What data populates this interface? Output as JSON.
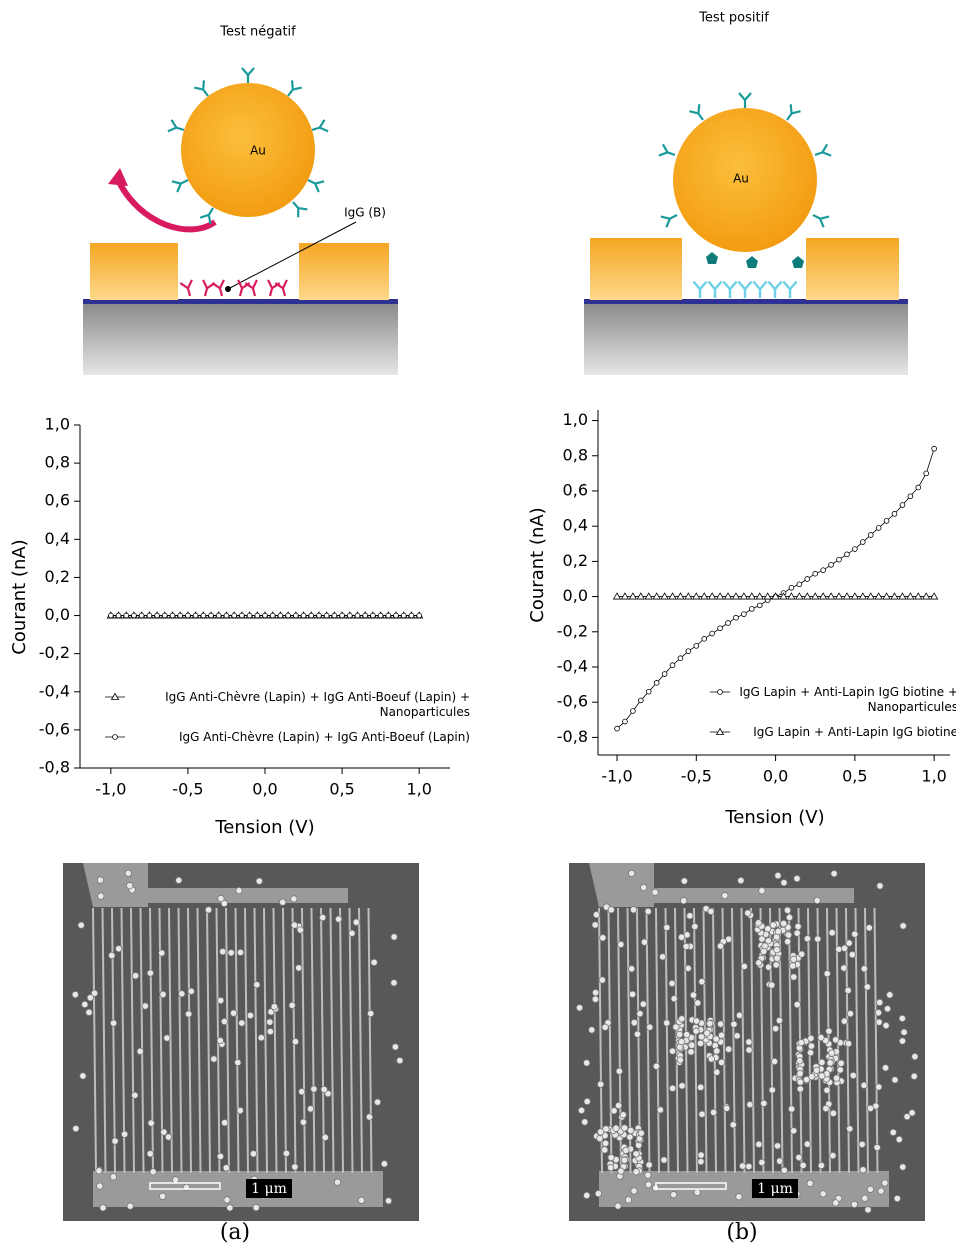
{
  "panels": [
    {
      "title": "Test négatif",
      "particle_label": "Au",
      "annotation": "IgG (B)",
      "scale_bar": "1 μm",
      "caption": "(a)"
    },
    {
      "title": "Test positif",
      "particle_label": "Au",
      "scale_bar": "1 μm",
      "caption": "(b)"
    }
  ],
  "chart_data": [
    {
      "type": "line",
      "x_label": "Tension (V)",
      "y_label": "Courant (nA)",
      "legend": "lower center",
      "xlim": [
        -1.2,
        1.2
      ],
      "ylim": [
        -0.8,
        1.0
      ],
      "xticks": [
        {
          "value": -1,
          "label": "-1,0"
        },
        {
          "value": -0.5,
          "label": "-0,5"
        },
        {
          "value": 0,
          "label": "0,0"
        },
        {
          "value": 0.5,
          "label": "0,5"
        },
        {
          "value": 1,
          "label": "1,0"
        }
      ],
      "yticks": [
        {
          "value": -0.8,
          "label": "-0,8"
        },
        {
          "value": -0.6,
          "label": "-0,6"
        },
        {
          "value": -0.4,
          "label": "-0,4"
        },
        {
          "value": -0.2,
          "label": "-0,2"
        },
        {
          "value": 0,
          "label": "0,0"
        },
        {
          "value": 0.2,
          "label": "0,2"
        },
        {
          "value": 0.4,
          "label": "0,4"
        },
        {
          "value": 0.6,
          "label": "0,6"
        },
        {
          "value": 0.8,
          "label": "0,8"
        },
        {
          "value": 1,
          "label": "1,0"
        }
      ],
      "x": [
        -1,
        -0.95,
        -0.9,
        -0.85,
        -0.8,
        -0.75,
        -0.7,
        -0.65,
        -0.6,
        -0.55,
        -0.5,
        -0.45,
        -0.4,
        -0.35,
        -0.3,
        -0.25,
        -0.2,
        -0.15,
        -0.1,
        -0.05,
        0,
        0.05,
        0.1,
        0.15,
        0.2,
        0.25,
        0.3,
        0.35,
        0.4,
        0.45,
        0.5,
        0.55,
        0.6,
        0.65,
        0.7,
        0.75,
        0.8,
        0.85,
        0.9,
        0.95,
        1
      ],
      "series": [
        {
          "name": "IgG Anti-Chèvre (Lapin)  + IgG Anti-Boeuf (Lapin) + Nanoparticules",
          "marker": "triangle",
          "color": "#000000",
          "values": [
            0,
            0,
            0,
            0,
            0,
            0,
            0,
            0,
            0,
            0,
            0,
            0,
            0,
            0,
            0,
            0,
            0,
            0,
            0,
            0,
            0,
            0,
            0,
            0,
            0,
            0,
            0,
            0,
            0,
            0,
            0,
            0,
            0,
            0,
            0,
            0,
            0,
            0,
            0,
            0,
            0
          ]
        },
        {
          "name": "IgG Anti-Chèvre (Lapin)  + IgG Anti-Boeuf (Lapin)",
          "marker": "circle",
          "color": "#000000",
          "values": [
            0,
            0,
            0,
            0,
            0,
            0,
            0,
            0,
            0,
            0,
            0,
            0,
            0,
            0,
            0,
            0,
            0,
            0,
            0,
            0,
            0,
            0,
            0,
            0,
            0,
            0,
            0,
            0,
            0,
            0,
            0,
            0,
            0,
            0,
            0,
            0,
            0,
            0,
            0,
            0,
            0
          ]
        }
      ]
    },
    {
      "type": "line",
      "x_label": "Tension (V)",
      "y_label": "Courant (nA)",
      "legend": "lower right",
      "xlim": [
        -1.12,
        1.1
      ],
      "ylim": [
        -0.9,
        1.06
      ],
      "xticks": [
        {
          "value": -1,
          "label": "-1,0"
        },
        {
          "value": -0.5,
          "label": "-0,5"
        },
        {
          "value": 0,
          "label": "0,0"
        },
        {
          "value": 0.5,
          "label": "0,5"
        },
        {
          "value": 1,
          "label": "1,0"
        }
      ],
      "yticks": [
        {
          "value": -0.8,
          "label": "-0,8"
        },
        {
          "value": -0.6,
          "label": "-0,6"
        },
        {
          "value": -0.4,
          "label": "-0,4"
        },
        {
          "value": -0.2,
          "label": "-0,2"
        },
        {
          "value": 0,
          "label": "0,0"
        },
        {
          "value": 0.2,
          "label": "0,2"
        },
        {
          "value": 0.4,
          "label": "0,4"
        },
        {
          "value": 0.6,
          "label": "0,6"
        },
        {
          "value": 0.8,
          "label": "0,8"
        },
        {
          "value": 1,
          "label": "1,0"
        }
      ],
      "x": [
        -1,
        -0.95,
        -0.9,
        -0.85,
        -0.8,
        -0.75,
        -0.7,
        -0.65,
        -0.6,
        -0.55,
        -0.5,
        -0.45,
        -0.4,
        -0.35,
        -0.3,
        -0.25,
        -0.2,
        -0.15,
        -0.1,
        -0.05,
        0,
        0.05,
        0.1,
        0.15,
        0.2,
        0.25,
        0.3,
        0.35,
        0.4,
        0.45,
        0.5,
        0.55,
        0.6,
        0.65,
        0.7,
        0.75,
        0.8,
        0.85,
        0.9,
        0.95,
        1
      ],
      "series": [
        {
          "name": "IgG Lapin + Anti-Lapin IgG biotine + Nanoparticules",
          "marker": "circle",
          "color": "#000000",
          "values": [
            -0.75,
            -0.71,
            -0.65,
            -0.59,
            -0.54,
            -0.49,
            -0.44,
            -0.39,
            -0.35,
            -0.31,
            -0.28,
            -0.24,
            -0.21,
            -0.18,
            -0.15,
            -0.12,
            -0.1,
            -0.07,
            -0.05,
            -0.02,
            0,
            0.02,
            0.05,
            0.07,
            0.1,
            0.13,
            0.15,
            0.18,
            0.21,
            0.24,
            0.27,
            0.31,
            0.35,
            0.39,
            0.43,
            0.47,
            0.52,
            0.57,
            0.62,
            0.7,
            0.84
          ]
        },
        {
          "name": "IgG Lapin + Anti-Lapin IgG biotine",
          "marker": "triangle",
          "color": "#000000",
          "values": [
            0,
            0,
            0,
            0,
            0,
            0,
            0,
            0,
            0,
            0,
            0,
            0,
            0,
            0,
            0,
            0,
            0,
            0,
            0,
            0,
            0,
            0,
            0,
            0,
            0,
            0,
            0,
            0,
            0,
            0,
            0,
            0,
            0,
            0,
            0,
            0,
            0,
            0,
            0,
            0,
            0
          ]
        }
      ]
    }
  ]
}
